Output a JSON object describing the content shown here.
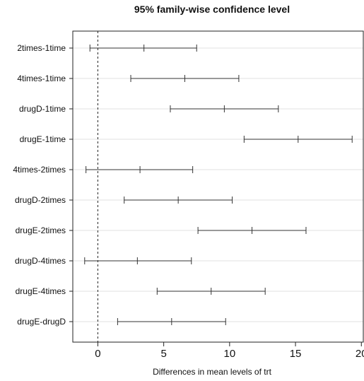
{
  "chart_data": {
    "type": "interval",
    "title": "95% family-wise confidence level",
    "xlabel": "Differences in mean levels of trt",
    "ylabel": "",
    "xlim": [
      -1.9,
      20.2
    ],
    "x_ticks": [
      0,
      5,
      10,
      15,
      20
    ],
    "reference_line": 0,
    "grid": true,
    "comparisons": [
      {
        "label": "2times-1time",
        "lwr": -0.6,
        "estimate": 3.5,
        "upr": 7.5
      },
      {
        "label": "4times-1time",
        "lwr": 2.5,
        "estimate": 6.6,
        "upr": 10.7
      },
      {
        "label": "drugD-1time",
        "lwr": 5.5,
        "estimate": 9.6,
        "upr": 13.7
      },
      {
        "label": "drugE-1time",
        "lwr": 11.1,
        "estimate": 15.2,
        "upr": 19.3
      },
      {
        "label": "4times-2times",
        "lwr": -0.9,
        "estimate": 3.2,
        "upr": 7.2
      },
      {
        "label": "drugD-2times",
        "lwr": 2.0,
        "estimate": 6.1,
        "upr": 10.2
      },
      {
        "label": "drugE-2times",
        "lwr": 7.6,
        "estimate": 11.7,
        "upr": 15.8
      },
      {
        "label": "drugD-4times",
        "lwr": -1.0,
        "estimate": 3.0,
        "upr": 7.1
      },
      {
        "label": "drugE-4times",
        "lwr": 4.5,
        "estimate": 8.6,
        "upr": 12.7
      },
      {
        "label": "drugE-drugD",
        "lwr": 1.5,
        "estimate": 5.6,
        "upr": 9.7
      }
    ]
  }
}
